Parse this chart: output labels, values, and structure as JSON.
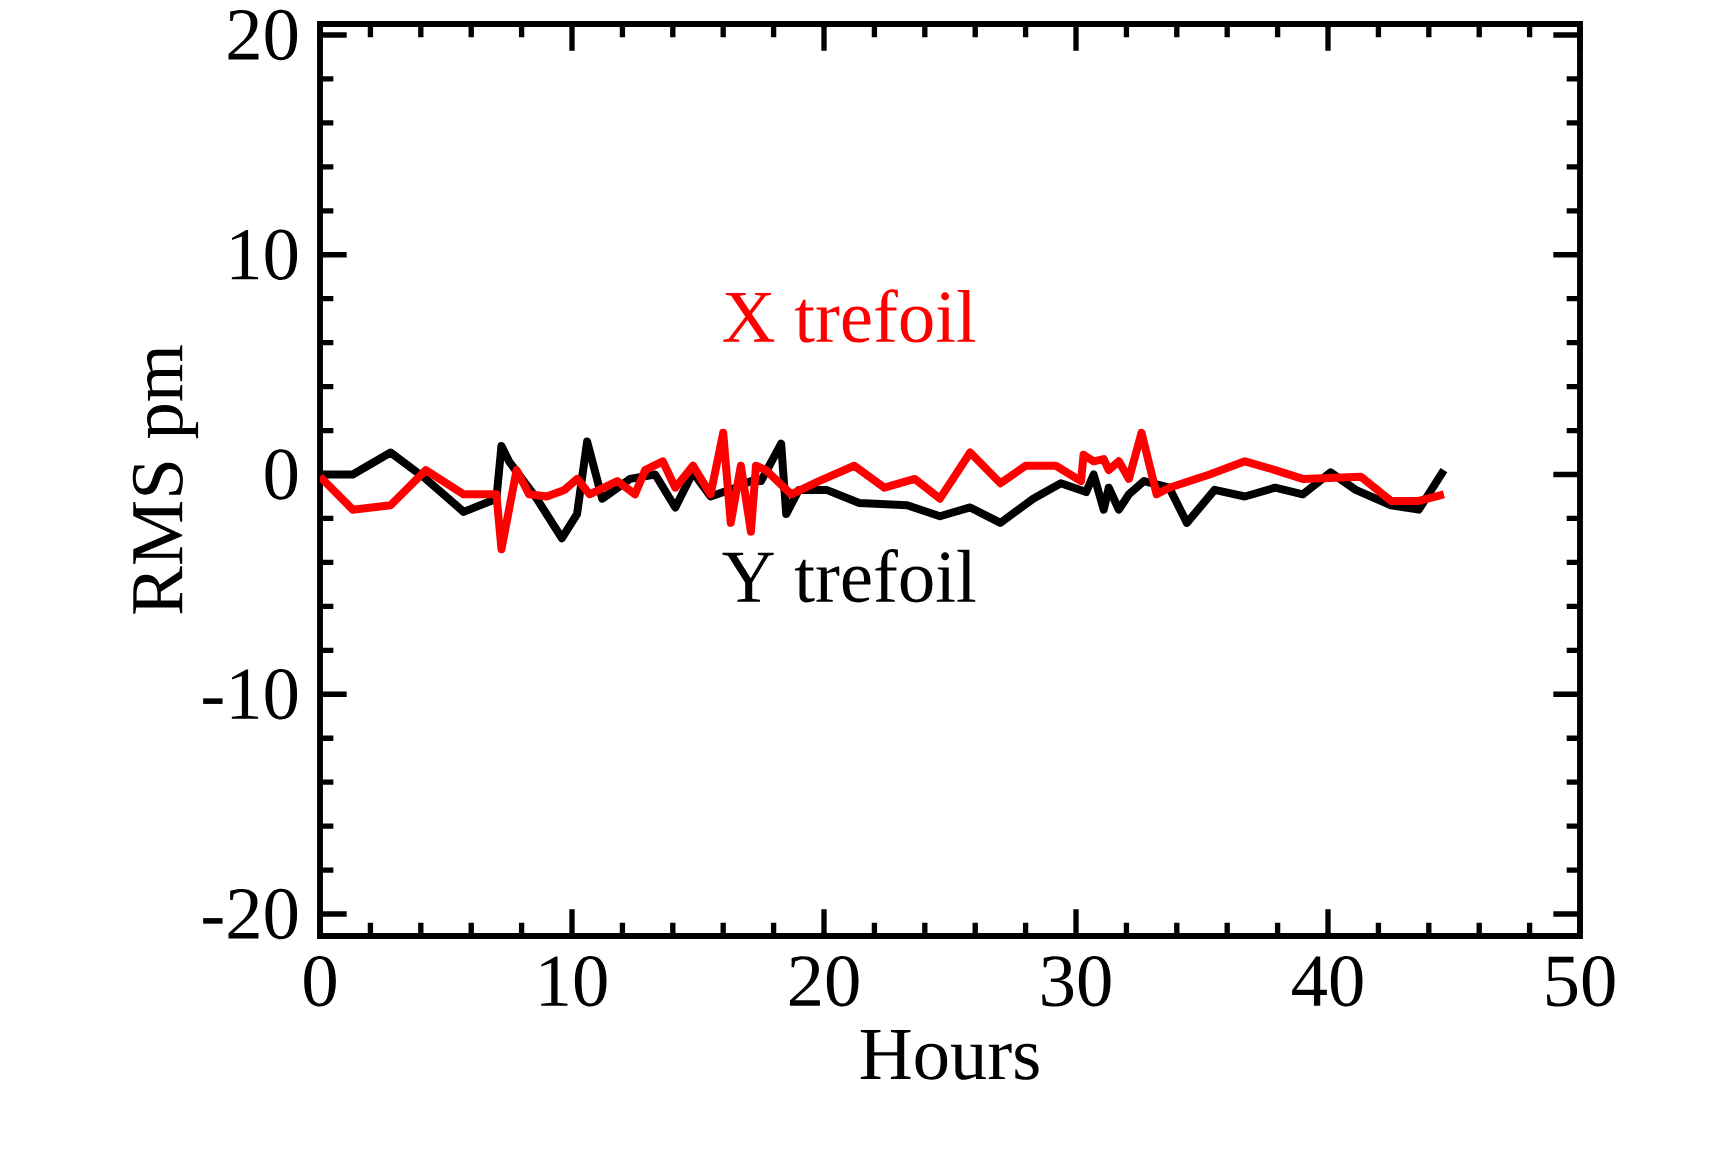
{
  "chart_data": {
    "type": "line",
    "xlabel": "Hours",
    "ylabel": "RMS pm",
    "xlim": [
      0,
      50
    ],
    "xticks": [
      0,
      10,
      20,
      30,
      40,
      50
    ],
    "ylim": [
      -21,
      20.5
    ],
    "yticks": [
      -20,
      -10,
      0,
      10,
      20
    ],
    "grid": false,
    "legend": false,
    "marker": "none",
    "line_style": "solid",
    "series": [
      {
        "name": "Y trefoil",
        "color": "#000000",
        "x": [
          0,
          1.3,
          2.8,
          4.2,
          5.7,
          7.0,
          7.2,
          7.5,
          8.6,
          9.6,
          10.2,
          10.6,
          11.2,
          12.3,
          13.3,
          14.1,
          14.8,
          15.5,
          16.5,
          17.1,
          17.5,
          18.3,
          18.5,
          19.0,
          20.1,
          21.4,
          23.3,
          24.6,
          25.8,
          27.0,
          28.3,
          29.4,
          30.4,
          30.7,
          31.1,
          31.3,
          31.7,
          32.1,
          32.7,
          33.7,
          34.4,
          35.5,
          36.7,
          37.9,
          39.0,
          40.1,
          41.1,
          42.5,
          43.6,
          44.6
        ],
        "values": [
          0,
          0,
          1.0,
          -0.2,
          -1.7,
          -1.1,
          1.3,
          0.6,
          -1.1,
          -2.9,
          -1.8,
          1.5,
          -1.1,
          -0.2,
          0,
          -1.5,
          0.1,
          -1.0,
          -0.6,
          -0.3,
          -0.3,
          1.4,
          -1.8,
          -0.7,
          -0.7,
          -1.3,
          -1.4,
          -1.9,
          -1.5,
          -2.2,
          -1.1,
          -0.4,
          -0.8,
          0,
          -1.6,
          -0.6,
          -1.6,
          -0.9,
          -0.3,
          -0.6,
          -2.2,
          -0.7,
          -1.0,
          -0.6,
          -0.9,
          0.1,
          -0.7,
          -1.4,
          -1.6,
          0.2
        ]
      },
      {
        "name": "X trefoil",
        "color": "#ff0000",
        "x": [
          0,
          1.3,
          2.8,
          4.2,
          5.7,
          7.0,
          7.2,
          7.8,
          8.3,
          9.0,
          9.7,
          10.2,
          10.7,
          11.8,
          12.5,
          12.9,
          13.6,
          14.1,
          14.8,
          15.5,
          16.0,
          16.3,
          16.7,
          17.1,
          17.3,
          17.7,
          18.7,
          19.8,
          21.2,
          22.4,
          23.6,
          24.6,
          25.8,
          27.0,
          28.0,
          29.2,
          30.2,
          30.3,
          30.7,
          31.1,
          31.3,
          31.7,
          32.1,
          32.6,
          33.2,
          33.7,
          35.3,
          36.7,
          37.9,
          39.0,
          41.3,
          42.5,
          43.6,
          44.6
        ],
        "values": [
          -0.1,
          -1.6,
          -1.4,
          0.2,
          -0.9,
          -0.9,
          -3.4,
          0.2,
          -0.9,
          -1.0,
          -0.7,
          -0.2,
          -0.9,
          -0.3,
          -0.9,
          0.2,
          0.6,
          -0.6,
          0.4,
          -0.9,
          1.9,
          -2.2,
          0.4,
          -2.6,
          0.4,
          0.2,
          -0.9,
          -0.3,
          0.4,
          -0.6,
          -0.2,
          -1.1,
          1.0,
          -0.4,
          0.4,
          0.4,
          -0.3,
          0.9,
          0.6,
          0.7,
          0.2,
          0.6,
          -0.2,
          1.9,
          -0.9,
          -0.6,
          0,
          0.6,
          0.2,
          -0.2,
          -0.1,
          -1.2,
          -1.2,
          -0.9
        ]
      }
    ]
  }
}
